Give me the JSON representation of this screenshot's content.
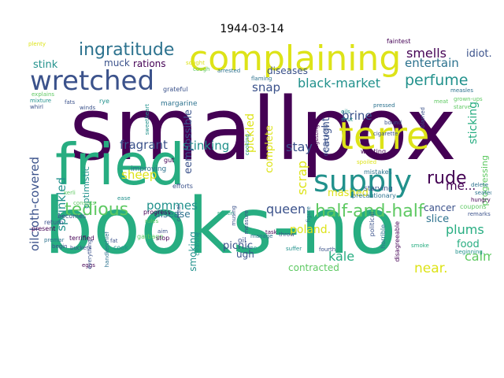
{
  "title": "1944-03-14",
  "palette": {
    "purple": "#440154",
    "indigo": "#3b528b",
    "blue": "#2c728e",
    "teal": "#21918c",
    "green": "#27ad81",
    "lime": "#5ec962",
    "yellow": "#dde318"
  },
  "words": [
    {
      "text": "smallpox",
      "color": "purple"
    },
    {
      "text": "books-no",
      "color": "green"
    },
    {
      "text": "fried",
      "color": "green"
    },
    {
      "text": "complaining",
      "color": "yellow"
    },
    {
      "text": "wretched",
      "color": "indigo"
    },
    {
      "text": "terre",
      "color": "yellow"
    },
    {
      "text": "supply",
      "color": "teal"
    },
    {
      "text": "ingratitude",
      "color": "blue"
    },
    {
      "text": "half-and-half",
      "color": "lime"
    },
    {
      "text": "tedious",
      "color": "lime"
    },
    {
      "text": "perfume",
      "color": "teal"
    },
    {
      "text": "oilcloth-covered",
      "color": "indigo"
    },
    {
      "text": "sprinkled",
      "color": "teal"
    },
    {
      "text": "rude",
      "color": "purple"
    },
    {
      "text": "black-market",
      "color": "teal"
    },
    {
      "text": "smells",
      "color": "purple"
    },
    {
      "text": "entertain",
      "color": "blue"
    },
    {
      "text": "queen",
      "color": "indigo"
    },
    {
      "text": "scrap",
      "color": "yellow"
    },
    {
      "text": "fragrant",
      "color": "indigo"
    },
    {
      "text": "stinking",
      "color": "teal"
    },
    {
      "text": "sheep",
      "color": "yellow"
    },
    {
      "text": "pommes",
      "color": "teal"
    },
    {
      "text": "stay",
      "color": "indigo"
    },
    {
      "text": "poland.",
      "color": "yellow"
    },
    {
      "text": "kale",
      "color": "green"
    },
    {
      "text": "plums",
      "color": "green"
    },
    {
      "text": "calm",
      "color": "lime"
    },
    {
      "text": "near.",
      "color": "yellow"
    },
    {
      "text": "stink",
      "color": "teal"
    },
    {
      "text": "brine",
      "color": "indigo"
    },
    {
      "text": "snap",
      "color": "indigo"
    },
    {
      "text": "sticking",
      "color": "green"
    },
    {
      "text": "idiot.",
      "color": "indigo"
    },
    {
      "text": "me...",
      "color": "purple"
    },
    {
      "text": "mashed",
      "color": "yellow"
    },
    {
      "text": "cancer",
      "color": "indigo"
    },
    {
      "text": "slice",
      "color": "blue"
    },
    {
      "text": "food",
      "color": "green"
    },
    {
      "text": "eempossible",
      "color": "indigo"
    },
    {
      "text": "pickled",
      "color": "yellow"
    },
    {
      "text": "complete",
      "color": "yellow"
    },
    {
      "text": "caught",
      "color": "indigo"
    },
    {
      "text": "rations",
      "color": "purple"
    },
    {
      "text": "muck",
      "color": "indigo"
    },
    {
      "text": "diseases",
      "color": "indigo"
    },
    {
      "text": "disease",
      "color": "blue"
    },
    {
      "text": "picnic",
      "color": "indigo"
    },
    {
      "text": "smoking",
      "color": "teal"
    },
    {
      "text": "ugh",
      "color": "indigo"
    },
    {
      "text": "contracted",
      "color": "lime"
    },
    {
      "text": "optimistic",
      "color": "teal"
    },
    {
      "text": "progressing",
      "color": "lime"
    },
    {
      "text": "margarine",
      "color": "blue"
    },
    {
      "text": "faintest",
      "color": "purple"
    },
    {
      "text": "cough",
      "color": "lime"
    },
    {
      "text": "arrested",
      "color": "blue"
    },
    {
      "text": "flaming",
      "color": "blue"
    },
    {
      "text": "grateful",
      "color": "indigo"
    },
    {
      "text": "improving",
      "color": "blue"
    },
    {
      "text": "gut",
      "color": "purple"
    },
    {
      "text": "efforts",
      "color": "indigo"
    },
    {
      "text": "oil",
      "color": "indigo"
    },
    {
      "text": "fine",
      "color": "teal"
    },
    {
      "text": "garbage",
      "color": "lime"
    },
    {
      "text": "mistakes",
      "color": "blue"
    },
    {
      "text": "wanting",
      "color": "purple"
    },
    {
      "text": "spoiled",
      "color": "yellow"
    },
    {
      "text": "starving",
      "color": "indigo"
    },
    {
      "text": "precautionary",
      "color": "blue"
    },
    {
      "text": "political",
      "color": "indigo"
    },
    {
      "text": "horrible",
      "color": "blue"
    },
    {
      "text": "disagreeable",
      "color": "purple"
    },
    {
      "text": "coupons",
      "color": "lime"
    },
    {
      "text": "remarks",
      "color": "indigo"
    },
    {
      "text": "hungry",
      "color": "purple"
    },
    {
      "text": "seated",
      "color": "blue"
    },
    {
      "text": "becomes",
      "color": "indigo"
    },
    {
      "text": "return",
      "color": "indigo"
    },
    {
      "text": "present",
      "color": "purple"
    },
    {
      "text": "explains",
      "color": "lime"
    },
    {
      "text": "mixture",
      "color": "teal"
    },
    {
      "text": "whirl",
      "color": "indigo"
    },
    {
      "text": "terrified",
      "color": "purple"
    },
    {
      "text": "eggs",
      "color": "purple"
    },
    {
      "text": "cook",
      "color": "teal"
    },
    {
      "text": "fat",
      "color": "indigo"
    },
    {
      "text": "stop",
      "color": "purple"
    },
    {
      "text": "aim",
      "color": "indigo"
    },
    {
      "text": "rotten",
      "color": "green"
    },
    {
      "text": "throw",
      "color": "indigo"
    },
    {
      "text": "suffer",
      "color": "teal"
    },
    {
      "text": "fourth",
      "color": "indigo"
    },
    {
      "text": "task",
      "color": "purple"
    },
    {
      "text": "smoke",
      "color": "green"
    },
    {
      "text": "beginning.",
      "color": "teal"
    },
    {
      "text": "shut",
      "color": "teal"
    },
    {
      "text": "bound",
      "color": "indigo"
    },
    {
      "text": "cigarette",
      "color": "indigo"
    },
    {
      "text": "oils",
      "color": "teal"
    },
    {
      "text": "blamed",
      "color": "indigo"
    },
    {
      "text": "pressed",
      "color": "blue"
    },
    {
      "text": "cleaning",
      "color": "teal"
    },
    {
      "text": "cooking",
      "color": "teal"
    },
    {
      "text": "figure",
      "color": "blue"
    },
    {
      "text": "measure",
      "color": "indigo"
    },
    {
      "text": "manage",
      "color": "blue"
    },
    {
      "text": "kerli",
      "color": "lime"
    },
    {
      "text": "premar",
      "color": "blue"
    },
    {
      "text": "progress",
      "color": "purple"
    },
    {
      "text": "rules",
      "color": "lime"
    },
    {
      "text": "consists",
      "color": "lime"
    },
    {
      "text": "buckets",
      "color": "indigo"
    },
    {
      "text": "everything",
      "color": "indigo"
    },
    {
      "text": "handkerchief",
      "color": "blue"
    },
    {
      "text": "begin",
      "color": "indigo"
    },
    {
      "text": "desperately",
      "color": "indigo"
    },
    {
      "text": "disgusting",
      "color": "purple"
    },
    {
      "text": "musing",
      "color": "indigo"
    },
    {
      "text": "sweetheart",
      "color": "teal"
    },
    {
      "text": "rye",
      "color": "teal"
    },
    {
      "text": "fats",
      "color": "indigo"
    },
    {
      "text": "winds",
      "color": "indigo"
    },
    {
      "text": "grown-ups",
      "color": "lime"
    },
    {
      "text": "starve",
      "color": "lime"
    },
    {
      "text": "measles",
      "color": "blue"
    },
    {
      "text": "plenty",
      "color": "yellow"
    },
    {
      "text": "delete",
      "color": "blue"
    },
    {
      "text": "cereal",
      "color": "indigo"
    },
    {
      "text": "ease",
      "color": "teal"
    },
    {
      "text": "sought",
      "color": "yellow"
    },
    {
      "text": "meat",
      "color": "lime"
    }
  ]
}
